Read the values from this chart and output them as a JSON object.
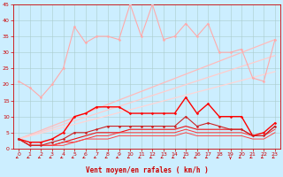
{
  "xlabel": "Vent moyen/en rafales ( km/h )",
  "xlim": [
    -0.5,
    23.5
  ],
  "ylim": [
    0,
    45
  ],
  "yticks": [
    0,
    5,
    10,
    15,
    20,
    25,
    30,
    35,
    40,
    45
  ],
  "xticks": [
    0,
    1,
    2,
    3,
    4,
    5,
    6,
    7,
    8,
    9,
    10,
    11,
    12,
    13,
    14,
    15,
    16,
    17,
    18,
    19,
    20,
    21,
    22,
    23
  ],
  "background_color": "#cceeff",
  "grid_color": "#aacccc",
  "series": [
    {
      "x": [
        0,
        1,
        2,
        3,
        4,
        5,
        6,
        7,
        8,
        9,
        10,
        11,
        12,
        13,
        14,
        15,
        16,
        17,
        18,
        19,
        20,
        21,
        22,
        23
      ],
      "y": [
        21,
        19,
        16,
        20,
        25,
        38,
        33,
        35,
        35,
        34,
        45,
        35,
        45,
        34,
        35,
        39,
        35,
        39,
        30,
        30,
        31,
        22,
        21,
        34
      ],
      "color": "#ffaaaa",
      "marker": "D",
      "markersize": 1.5,
      "linewidth": 0.8,
      "zorder": 3
    },
    {
      "x": [
        0,
        1,
        2,
        3,
        4,
        5,
        6,
        7,
        8,
        9,
        10,
        11,
        12,
        13,
        14,
        15,
        16,
        17,
        18,
        19,
        20,
        21,
        22,
        23
      ],
      "y": [
        3,
        2,
        2,
        3,
        5,
        10,
        11,
        13,
        13,
        13,
        11,
        11,
        11,
        11,
        11,
        16,
        11,
        14,
        10,
        10,
        10,
        4,
        5,
        8
      ],
      "color": "#ff0000",
      "marker": "D",
      "markersize": 1.5,
      "linewidth": 1.0,
      "zorder": 4
    },
    {
      "x": [
        0,
        1,
        2,
        3,
        4,
        5,
        6,
        7,
        8,
        9,
        10,
        11,
        12,
        13,
        14,
        15,
        16,
        17,
        18,
        19,
        20,
        21,
        22,
        23
      ],
      "y": [
        3,
        1,
        1,
        2,
        3,
        5,
        5,
        6,
        7,
        7,
        7,
        7,
        7,
        7,
        7,
        10,
        7,
        8,
        7,
        6,
        6,
        4,
        4,
        7
      ],
      "color": "#cc2222",
      "marker": "D",
      "markersize": 1.5,
      "linewidth": 0.8,
      "zorder": 4
    },
    {
      "x": [
        0,
        1,
        2,
        3,
        4,
        5,
        6,
        7,
        8,
        9,
        10,
        11,
        12,
        13,
        14,
        15,
        16,
        17,
        18,
        19,
        20,
        21,
        22,
        23
      ],
      "y": [
        3,
        1,
        1,
        1,
        2,
        3,
        4,
        5,
        5,
        5,
        6,
        6,
        6,
        6,
        6,
        7,
        6,
        6,
        6,
        6,
        6,
        4,
        4,
        7
      ],
      "color": "#ee1111",
      "marker": null,
      "linewidth": 0.8,
      "zorder": 3
    },
    {
      "x": [
        0,
        1,
        2,
        3,
        4,
        5,
        6,
        7,
        8,
        9,
        10,
        11,
        12,
        13,
        14,
        15,
        16,
        17,
        18,
        19,
        20,
        21,
        22,
        23
      ],
      "y": [
        3,
        1,
        1,
        1,
        2,
        2,
        3,
        4,
        4,
        5,
        5,
        5,
        5,
        5,
        5,
        6,
        5,
        5,
        5,
        5,
        5,
        4,
        4,
        6
      ],
      "color": "#ff3333",
      "marker": null,
      "linewidth": 0.7,
      "zorder": 3
    },
    {
      "x": [
        0,
        1,
        2,
        3,
        4,
        5,
        6,
        7,
        8,
        9,
        10,
        11,
        12,
        13,
        14,
        15,
        16,
        17,
        18,
        19,
        20,
        21,
        22,
        23
      ],
      "y": [
        3,
        1,
        1,
        1,
        1,
        2,
        3,
        3,
        3,
        4,
        4,
        4,
        4,
        4,
        4,
        5,
        4,
        4,
        4,
        4,
        4,
        3,
        3,
        5
      ],
      "color": "#ff4444",
      "marker": null,
      "linewidth": 0.7,
      "zorder": 3
    },
    {
      "x": [
        0,
        23
      ],
      "y": [
        3,
        34
      ],
      "color": "#ffbbbb",
      "marker": null,
      "linewidth": 0.9,
      "zorder": 2
    },
    {
      "x": [
        0,
        23
      ],
      "y": [
        3,
        29
      ],
      "color": "#ffcccc",
      "marker": null,
      "linewidth": 0.9,
      "zorder": 2
    },
    {
      "x": [
        0,
        23
      ],
      "y": [
        3,
        24
      ],
      "color": "#ffd5d5",
      "marker": null,
      "linewidth": 0.9,
      "zorder": 2
    }
  ],
  "arrow_angles": [
    225,
    225,
    225,
    225,
    225,
    225,
    225,
    225,
    225,
    225,
    225,
    225,
    225,
    225,
    225,
    225,
    225,
    225,
    225,
    270,
    225,
    225,
    225,
    225
  ],
  "arrow_color": "#cc0000"
}
